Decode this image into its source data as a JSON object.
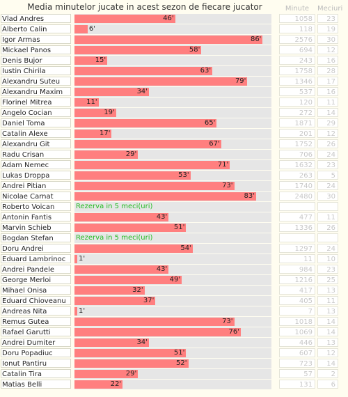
{
  "header": {
    "title": "Media minutelor jucate in acest sezon de fiecare jucator",
    "col_minutes": "Minute",
    "col_matches": "Meciuri"
  },
  "chart_data": {
    "type": "bar",
    "orientation": "horizontal",
    "title": "Media minutelor jucate in acest sezon de fiecare jucator",
    "xlim": [
      0,
      90
    ],
    "value_suffix": "'",
    "colors": {
      "bar": "#ff7f7f",
      "track": "#e6e6e6",
      "note": "#22bb22"
    },
    "rows": [
      {
        "name": "Vlad Andres",
        "avg": 46,
        "minutes": "1058",
        "matches": "23"
      },
      {
        "name": "Alberto Calin",
        "avg": 6,
        "minutes": "118",
        "matches": "19"
      },
      {
        "name": "Igor Armas",
        "avg": 86,
        "minutes": "2576",
        "matches": "30"
      },
      {
        "name": "Mickael Panos",
        "avg": 58,
        "minutes": "694",
        "matches": "12"
      },
      {
        "name": "Denis Bujor",
        "avg": 15,
        "minutes": "243",
        "matches": "16"
      },
      {
        "name": "Iustin Chirila",
        "avg": 63,
        "minutes": "1758",
        "matches": "28"
      },
      {
        "name": "Alexandru Suteu",
        "avg": 79,
        "minutes": "1346",
        "matches": "17"
      },
      {
        "name": "Alexandru Maxim",
        "avg": 34,
        "minutes": "537",
        "matches": "16"
      },
      {
        "name": "Florinel Mitrea",
        "avg": 11,
        "minutes": "120",
        "matches": "11"
      },
      {
        "name": "Angelo Cocian",
        "avg": 19,
        "minutes": "272",
        "matches": "14"
      },
      {
        "name": "Daniel Toma",
        "avg": 65,
        "minutes": "1871",
        "matches": "29"
      },
      {
        "name": "Catalin Alexe",
        "avg": 17,
        "minutes": "201",
        "matches": "12"
      },
      {
        "name": "Alexandru Git",
        "avg": 67,
        "minutes": "1752",
        "matches": "26"
      },
      {
        "name": "Radu Crisan",
        "avg": 29,
        "minutes": "706",
        "matches": "24"
      },
      {
        "name": "Adam Nemec",
        "avg": 71,
        "minutes": "1632",
        "matches": "23"
      },
      {
        "name": "Lukas Droppa",
        "avg": 53,
        "minutes": "263",
        "matches": "5"
      },
      {
        "name": "Andrei Pitian",
        "avg": 73,
        "minutes": "1740",
        "matches": "24"
      },
      {
        "name": "Nicolae Carnat",
        "avg": 83,
        "minutes": "2480",
        "matches": "30"
      },
      {
        "name": "Roberto Voican",
        "avg": null,
        "note": "Rezerva in 5 meci(uri)",
        "minutes": "",
        "matches": ""
      },
      {
        "name": "Antonin Fantis",
        "avg": 43,
        "minutes": "477",
        "matches": "11"
      },
      {
        "name": "Marvin Schieb",
        "avg": 51,
        "minutes": "1336",
        "matches": "26"
      },
      {
        "name": "Bogdan Stefan",
        "avg": null,
        "note": "Rezerva in 5 meci(uri)",
        "minutes": "",
        "matches": ""
      },
      {
        "name": "Doru Andrei",
        "avg": 54,
        "minutes": "1297",
        "matches": "24"
      },
      {
        "name": "Eduard Lambrinoc",
        "avg": 1,
        "minutes": "11",
        "matches": "10"
      },
      {
        "name": "Andrei Pandele",
        "avg": 43,
        "minutes": "984",
        "matches": "23"
      },
      {
        "name": "George Merloi",
        "avg": 49,
        "minutes": "1216",
        "matches": "25"
      },
      {
        "name": "Mihael Onisa",
        "avg": 32,
        "minutes": "417",
        "matches": "13"
      },
      {
        "name": "Eduard Chioveanu",
        "avg": 37,
        "minutes": "405",
        "matches": "11"
      },
      {
        "name": "Andreas Nita",
        "avg": 1,
        "minutes": "7",
        "matches": "13"
      },
      {
        "name": "Remus Gutea",
        "avg": 73,
        "minutes": "1018",
        "matches": "14"
      },
      {
        "name": "Rafael Garutti",
        "avg": 76,
        "minutes": "1069",
        "matches": "14"
      },
      {
        "name": "Andrei Dumiter",
        "avg": 34,
        "minutes": "446",
        "matches": "13"
      },
      {
        "name": "Doru Popadiuc",
        "avg": 51,
        "minutes": "607",
        "matches": "12"
      },
      {
        "name": "Ionut Pantiru",
        "avg": 52,
        "minutes": "723",
        "matches": "14"
      },
      {
        "name": "Catalin Tira",
        "avg": 29,
        "minutes": "57",
        "matches": "2"
      },
      {
        "name": "Matias Belli",
        "avg": 22,
        "minutes": "131",
        "matches": "6"
      }
    ]
  }
}
